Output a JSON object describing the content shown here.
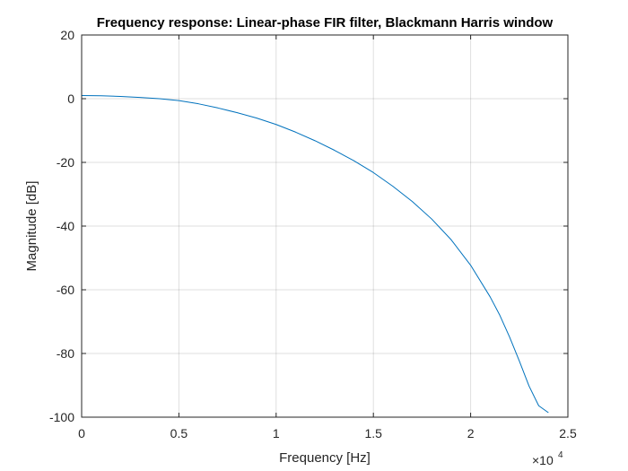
{
  "chart_data": {
    "type": "line",
    "title": "Frequency response: Linear-phase FIR filter, Blackmann Harris window",
    "xlabel": "Frequency [Hz]",
    "ylabel": "Magnitude [dB]",
    "xlim": [
      0,
      25000
    ],
    "ylim": [
      -100,
      20
    ],
    "x_ticks": [
      0,
      5000,
      10000,
      15000,
      20000,
      25000
    ],
    "x_tick_labels": [
      "0",
      "0.5",
      "1",
      "1.5",
      "2",
      "2.5"
    ],
    "x_exponent_base": "×10",
    "x_exponent_power": "4",
    "y_ticks": [
      -100,
      -80,
      -60,
      -40,
      -20,
      0,
      20
    ],
    "y_tick_labels": [
      "-100",
      "-80",
      "-60",
      "-40",
      "-20",
      "0",
      "20"
    ],
    "grid": true,
    "series": [
      {
        "color": "#0072BD",
        "x": [
          0,
          1000,
          2000,
          3000,
          4000,
          5000,
          6000,
          7000,
          8000,
          9000,
          10000,
          11000,
          12000,
          13000,
          14000,
          15000,
          16000,
          17000,
          18000,
          19000,
          20000,
          21000,
          21500,
          22000,
          22500,
          23000,
          23500,
          24000
        ],
        "y": [
          1,
          0.9,
          0.7,
          0.4,
          0,
          -0.6,
          -1.6,
          -2.9,
          -4.4,
          -6.1,
          -8.1,
          -10.5,
          -13.2,
          -16.2,
          -19.5,
          -23.2,
          -27.5,
          -32.3,
          -37.8,
          -44.3,
          -52.3,
          -62.2,
          -68.0,
          -74.8,
          -82.3,
          -90.2,
          -96.4,
          -98.6
        ]
      }
    ]
  }
}
